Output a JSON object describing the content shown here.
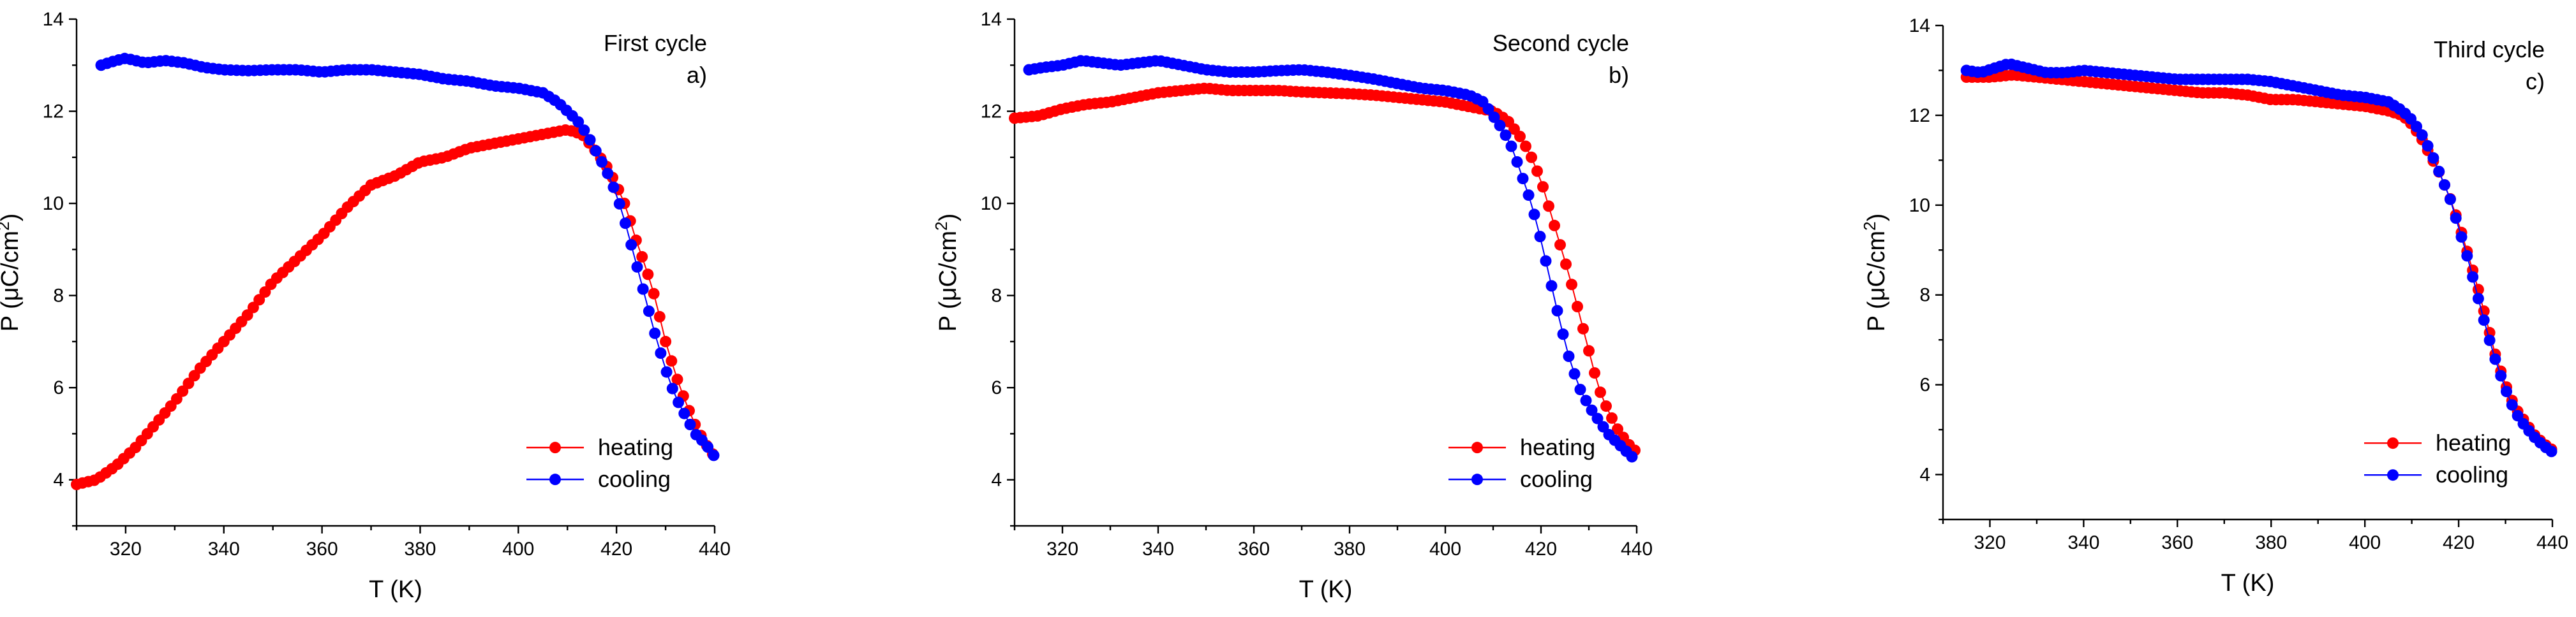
{
  "chart_data": [
    {
      "type": "scatter",
      "annotation_title": "First cycle",
      "annotation_panel": "a)",
      "xlabel": "T (K)",
      "ylabel_main": "P (μC/cm",
      "ylabel_sup": "2",
      "ylabel_close": ")",
      "xlim": [
        310,
        440
      ],
      "ylim": [
        3,
        14
      ],
      "xticks": [
        320,
        340,
        360,
        380,
        400,
        420,
        440
      ],
      "yticks": [
        4,
        6,
        8,
        10,
        12,
        14
      ],
      "legend_position": "bottom-right",
      "series": [
        {
          "name": "heating",
          "color": "#ff0000",
          "anchors": [
            [
              310,
              3.9
            ],
            [
              314,
              4.0
            ],
            [
              318,
              4.3
            ],
            [
              322,
              4.7
            ],
            [
              326,
              5.2
            ],
            [
              330,
              5.7
            ],
            [
              335,
              6.4
            ],
            [
              340,
              7.0
            ],
            [
              345,
              7.6
            ],
            [
              350,
              8.3
            ],
            [
              355,
              8.8
            ],
            [
              360,
              9.3
            ],
            [
              365,
              9.9
            ],
            [
              370,
              10.4
            ],
            [
              375,
              10.6
            ],
            [
              380,
              10.9
            ],
            [
              385,
              11.0
            ],
            [
              390,
              11.2
            ],
            [
              395,
              11.3
            ],
            [
              400,
              11.4
            ],
            [
              405,
              11.5
            ],
            [
              410,
              11.6
            ],
            [
              413,
              11.5
            ],
            [
              416,
              11.1
            ],
            [
              418,
              10.8
            ],
            [
              420,
              10.4
            ],
            [
              422,
              9.9
            ],
            [
              424,
              9.2
            ],
            [
              426,
              8.6
            ],
            [
              428,
              7.9
            ],
            [
              430,
              7.0
            ],
            [
              432,
              6.3
            ],
            [
              434,
              5.7
            ],
            [
              436,
              5.2
            ],
            [
              438,
              4.8
            ],
            [
              440,
              4.5
            ]
          ]
        },
        {
          "name": "cooling",
          "color": "#0000ff",
          "anchors": [
            [
              315,
              13.0
            ],
            [
              318,
              13.1
            ],
            [
              320,
              13.15
            ],
            [
              324,
              13.05
            ],
            [
              328,
              13.1
            ],
            [
              332,
              13.05
            ],
            [
              336,
              12.95
            ],
            [
              340,
              12.9
            ],
            [
              345,
              12.88
            ],
            [
              350,
              12.9
            ],
            [
              355,
              12.9
            ],
            [
              360,
              12.85
            ],
            [
              365,
              12.9
            ],
            [
              370,
              12.9
            ],
            [
              375,
              12.85
            ],
            [
              380,
              12.8
            ],
            [
              385,
              12.7
            ],
            [
              390,
              12.65
            ],
            [
              395,
              12.55
            ],
            [
              400,
              12.5
            ],
            [
              405,
              12.4
            ],
            [
              408,
              12.2
            ],
            [
              410,
              12.0
            ],
            [
              412,
              11.8
            ],
            [
              414,
              11.5
            ],
            [
              416,
              11.1
            ],
            [
              418,
              10.7
            ],
            [
              420,
              10.2
            ],
            [
              422,
              9.5
            ],
            [
              424,
              8.7
            ],
            [
              426,
              7.9
            ],
            [
              428,
              7.1
            ],
            [
              430,
              6.4
            ],
            [
              432,
              5.8
            ],
            [
              434,
              5.4
            ],
            [
              436,
              5.0
            ],
            [
              438,
              4.8
            ],
            [
              440,
              4.5
            ]
          ]
        }
      ]
    },
    {
      "type": "scatter",
      "annotation_title": "Second cycle",
      "annotation_panel": "b)",
      "xlabel": "T (K)",
      "ylabel_main": "P (μC/cm",
      "ylabel_sup": "2",
      "ylabel_close": ")",
      "xlim": [
        310,
        440
      ],
      "ylim": [
        3,
        14
      ],
      "xticks": [
        320,
        340,
        360,
        380,
        400,
        420,
        440
      ],
      "yticks": [
        4,
        6,
        8,
        10,
        12,
        14
      ],
      "legend_position": "bottom-right",
      "series": [
        {
          "name": "heating",
          "color": "#ff0000",
          "anchors": [
            [
              310,
              11.85
            ],
            [
              315,
              11.9
            ],
            [
              320,
              12.05
            ],
            [
              325,
              12.15
            ],
            [
              330,
              12.2
            ],
            [
              335,
              12.3
            ],
            [
              340,
              12.4
            ],
            [
              345,
              12.45
            ],
            [
              350,
              12.5
            ],
            [
              355,
              12.45
            ],
            [
              360,
              12.45
            ],
            [
              365,
              12.45
            ],
            [
              370,
              12.42
            ],
            [
              375,
              12.4
            ],
            [
              380,
              12.38
            ],
            [
              385,
              12.35
            ],
            [
              390,
              12.3
            ],
            [
              395,
              12.25
            ],
            [
              400,
              12.2
            ],
            [
              405,
              12.1
            ],
            [
              410,
              12.0
            ],
            [
              413,
              11.8
            ],
            [
              416,
              11.4
            ],
            [
              418,
              11.0
            ],
            [
              420,
              10.5
            ],
            [
              422,
              9.8
            ],
            [
              424,
              9.1
            ],
            [
              426,
              8.4
            ],
            [
              428,
              7.6
            ],
            [
              430,
              6.8
            ],
            [
              432,
              6.0
            ],
            [
              434,
              5.5
            ],
            [
              436,
              5.1
            ],
            [
              438,
              4.8
            ],
            [
              440,
              4.6
            ]
          ]
        },
        {
          "name": "cooling",
          "color": "#0000ff",
          "anchors": [
            [
              313,
              12.9
            ],
            [
              316,
              12.95
            ],
            [
              320,
              13.0
            ],
            [
              324,
              13.1
            ],
            [
              328,
              13.05
            ],
            [
              332,
              13.0
            ],
            [
              336,
              13.05
            ],
            [
              340,
              13.1
            ],
            [
              345,
              13.0
            ],
            [
              350,
              12.9
            ],
            [
              355,
              12.85
            ],
            [
              360,
              12.85
            ],
            [
              365,
              12.88
            ],
            [
              370,
              12.9
            ],
            [
              375,
              12.85
            ],
            [
              380,
              12.78
            ],
            [
              385,
              12.7
            ],
            [
              390,
              12.6
            ],
            [
              395,
              12.5
            ],
            [
              400,
              12.45
            ],
            [
              405,
              12.35
            ],
            [
              408,
              12.2
            ],
            [
              410,
              11.9
            ],
            [
              412,
              11.6
            ],
            [
              414,
              11.2
            ],
            [
              416,
              10.6
            ],
            [
              418,
              10.0
            ],
            [
              420,
              9.2
            ],
            [
              422,
              8.3
            ],
            [
              424,
              7.4
            ],
            [
              426,
              6.6
            ],
            [
              428,
              6.0
            ],
            [
              430,
              5.6
            ],
            [
              432,
              5.3
            ],
            [
              434,
              5.0
            ],
            [
              436,
              4.8
            ],
            [
              438,
              4.6
            ],
            [
              440,
              4.4
            ]
          ]
        }
      ]
    },
    {
      "type": "scatter",
      "annotation_title": "Third cycle",
      "annotation_panel": "c)",
      "xlabel": "T (K)",
      "ylabel_main": "P (μC/cm",
      "ylabel_sup": "2",
      "ylabel_close": ")",
      "xlim": [
        310,
        440
      ],
      "ylim": [
        3,
        14
      ],
      "xticks": [
        320,
        340,
        360,
        380,
        400,
        420,
        440
      ],
      "yticks": [
        4,
        6,
        8,
        10,
        12,
        14
      ],
      "legend_position": "bottom-right",
      "series": [
        {
          "name": "heating",
          "color": "#ff0000",
          "anchors": [
            [
              315,
              12.85
            ],
            [
              320,
              12.85
            ],
            [
              325,
              12.9
            ],
            [
              330,
              12.85
            ],
            [
              335,
              12.8
            ],
            [
              340,
              12.75
            ],
            [
              345,
              12.7
            ],
            [
              350,
              12.65
            ],
            [
              355,
              12.6
            ],
            [
              360,
              12.55
            ],
            [
              365,
              12.5
            ],
            [
              370,
              12.5
            ],
            [
              375,
              12.45
            ],
            [
              380,
              12.35
            ],
            [
              385,
              12.35
            ],
            [
              390,
              12.3
            ],
            [
              395,
              12.25
            ],
            [
              400,
              12.2
            ],
            [
              405,
              12.1
            ],
            [
              408,
              12.0
            ],
            [
              410,
              11.8
            ],
            [
              412,
              11.5
            ],
            [
              414,
              11.1
            ],
            [
              416,
              10.7
            ],
            [
              418,
              10.2
            ],
            [
              420,
              9.6
            ],
            [
              422,
              8.9
            ],
            [
              424,
              8.2
            ],
            [
              426,
              7.4
            ],
            [
              428,
              6.6
            ],
            [
              430,
              6.0
            ],
            [
              432,
              5.5
            ],
            [
              434,
              5.2
            ],
            [
              436,
              4.9
            ],
            [
              438,
              4.7
            ],
            [
              440,
              4.55
            ]
          ]
        },
        {
          "name": "cooling",
          "color": "#0000ff",
          "anchors": [
            [
              315,
              13.0
            ],
            [
              318,
              12.95
            ],
            [
              321,
              13.05
            ],
            [
              324,
              13.15
            ],
            [
              328,
              13.05
            ],
            [
              332,
              12.95
            ],
            [
              336,
              12.95
            ],
            [
              340,
              13.0
            ],
            [
              345,
              12.95
            ],
            [
              350,
              12.9
            ],
            [
              355,
              12.85
            ],
            [
              360,
              12.8
            ],
            [
              365,
              12.8
            ],
            [
              370,
              12.8
            ],
            [
              375,
              12.8
            ],
            [
              380,
              12.75
            ],
            [
              385,
              12.65
            ],
            [
              390,
              12.55
            ],
            [
              395,
              12.45
            ],
            [
              400,
              12.4
            ],
            [
              405,
              12.3
            ],
            [
              408,
              12.1
            ],
            [
              410,
              11.9
            ],
            [
              412,
              11.6
            ],
            [
              414,
              11.2
            ],
            [
              416,
              10.7
            ],
            [
              418,
              10.2
            ],
            [
              420,
              9.5
            ],
            [
              422,
              8.8
            ],
            [
              424,
              8.0
            ],
            [
              426,
              7.2
            ],
            [
              428,
              6.5
            ],
            [
              430,
              5.9
            ],
            [
              432,
              5.4
            ],
            [
              434,
              5.1
            ],
            [
              436,
              4.85
            ],
            [
              438,
              4.65
            ],
            [
              440,
              4.5
            ]
          ]
        }
      ]
    }
  ]
}
